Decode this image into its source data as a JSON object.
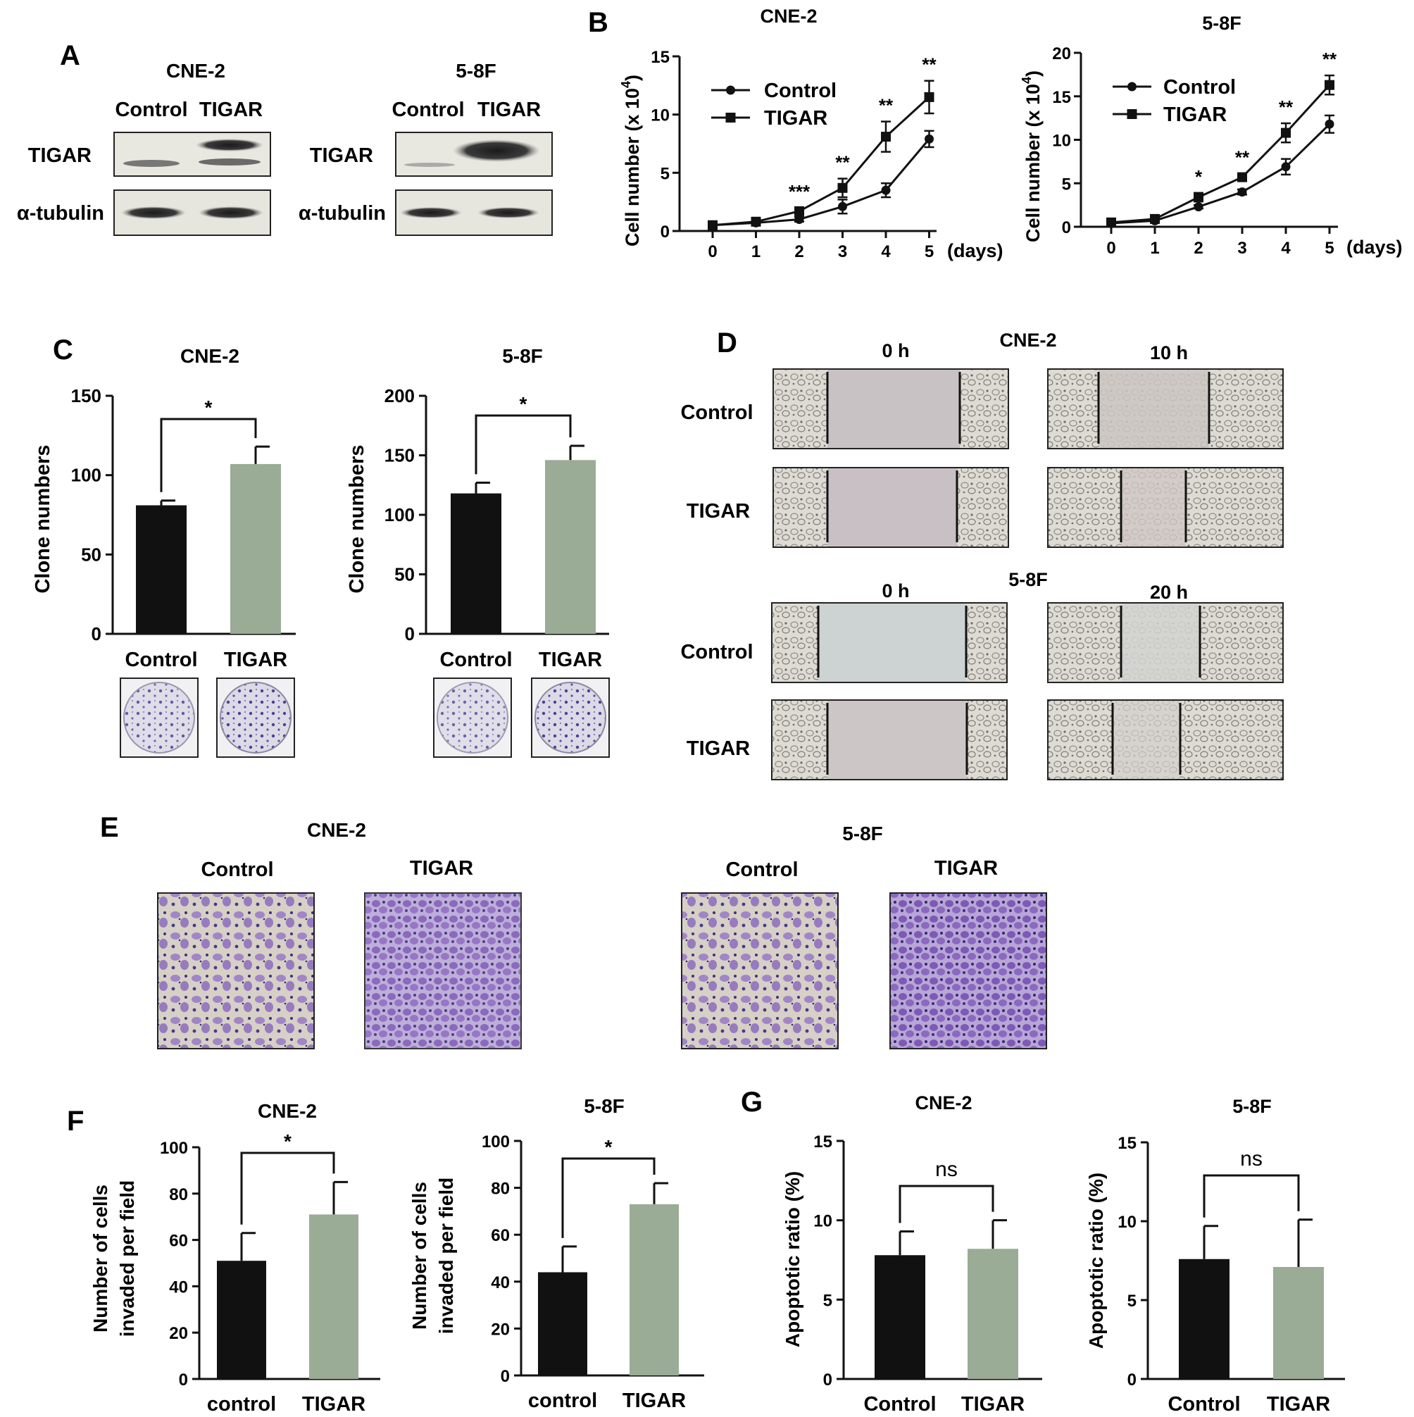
{
  "panel_letters": [
    "A",
    "B",
    "C",
    "D",
    "E",
    "F",
    "G"
  ],
  "panel_a": {
    "blots": [
      {
        "cell_line": "CNE-2",
        "lanes": [
          "Control",
          "TIGAR"
        ],
        "rows": [
          "TIGAR",
          "α-tubulin"
        ]
      },
      {
        "cell_line": "5-8F",
        "lanes": [
          "Control",
          "TIGAR"
        ],
        "rows": [
          "TIGAR",
          "α-tubulin"
        ]
      }
    ]
  },
  "panel_d": {
    "groups": [
      {
        "cell_line": "CNE-2",
        "timepoints": [
          "0 h",
          "10 h"
        ],
        "rows": [
          "Control",
          "TIGAR"
        ]
      },
      {
        "cell_line": "5-8F",
        "timepoints": [
          "0 h",
          "20 h"
        ],
        "rows": [
          "Control",
          "TIGAR"
        ]
      }
    ]
  },
  "panel_e": {
    "groups": [
      {
        "cell_line": "CNE-2",
        "columns": [
          "Control",
          "TIGAR"
        ]
      },
      {
        "cell_line": "5-8F",
        "columns": [
          "Control",
          "TIGAR"
        ]
      }
    ]
  },
  "colors": {
    "control": "#111111",
    "tigar": "#9aab96",
    "wound_bg": "#c9c3c3",
    "stain": "#7b55b5"
  },
  "chart_data": [
    {
      "id": "B-CNE2",
      "type": "line",
      "title": "CNE-2",
      "ylabel": "Cell number (x 10",
      "ylabel_sup": "4",
      "ylabel_close": ")",
      "x_unit": "(days)",
      "x": [
        0,
        1,
        2,
        3,
        4,
        5
      ],
      "xlim": [
        0,
        5
      ],
      "ylim": [
        0,
        15
      ],
      "yticks": [
        0,
        5,
        10,
        15
      ],
      "legend": "top-left",
      "series": [
        {
          "name": "Control",
          "marker": "circle",
          "values": [
            0.5,
            0.7,
            1.0,
            2.1,
            3.5,
            7.9
          ],
          "errors": [
            0.1,
            0.1,
            0.2,
            0.6,
            0.6,
            0.7
          ]
        },
        {
          "name": "TIGAR",
          "marker": "square",
          "values": [
            0.5,
            0.8,
            1.7,
            3.7,
            8.1,
            11.5
          ],
          "errors": [
            0.1,
            0.1,
            0.3,
            0.8,
            1.3,
            1.4
          ]
        }
      ],
      "annotations": [
        {
          "x": 2,
          "text": "***"
        },
        {
          "x": 3,
          "text": "**"
        },
        {
          "x": 4,
          "text": "**"
        },
        {
          "x": 5,
          "text": "**"
        }
      ]
    },
    {
      "id": "B-58F",
      "type": "line",
      "title": "5-8F",
      "ylabel": "Cell number (x 10",
      "ylabel_sup": "4",
      "ylabel_close": ")",
      "x_unit": "(days)",
      "x": [
        0,
        1,
        2,
        3,
        4,
        5
      ],
      "xlim": [
        0,
        5
      ],
      "ylim": [
        0,
        20
      ],
      "yticks": [
        0,
        5,
        10,
        15,
        20
      ],
      "legend": "top-left",
      "series": [
        {
          "name": "Control",
          "marker": "circle",
          "values": [
            0.4,
            0.7,
            2.3,
            4.0,
            6.9,
            11.8
          ],
          "errors": [
            0.1,
            0.1,
            0.2,
            0.3,
            0.9,
            1.0
          ]
        },
        {
          "name": "TIGAR",
          "marker": "square",
          "values": [
            0.5,
            0.9,
            3.4,
            5.7,
            10.8,
            16.3
          ],
          "errors": [
            0.1,
            0.1,
            0.5,
            0.4,
            1.1,
            1.1
          ]
        }
      ],
      "annotations": [
        {
          "x": 2,
          "text": "*"
        },
        {
          "x": 3,
          "text": "**"
        },
        {
          "x": 4,
          "text": "**"
        },
        {
          "x": 5,
          "text": "**"
        }
      ]
    },
    {
      "id": "C-CNE2",
      "type": "bar",
      "title": "CNE-2",
      "ylabel": "Clone numbers",
      "categories": [
        "Control",
        "TIGAR"
      ],
      "values": [
        81,
        107
      ],
      "errors": [
        3,
        11
      ],
      "ylim": [
        0,
        150
      ],
      "yticks": [
        0,
        50,
        100,
        150
      ],
      "significance": "*"
    },
    {
      "id": "C-58F",
      "type": "bar",
      "title": "5-8F",
      "ylabel": "Clone numbers",
      "categories": [
        "Control",
        "TIGAR"
      ],
      "values": [
        118,
        146
      ],
      "errors": [
        9,
        12
      ],
      "ylim": [
        0,
        200
      ],
      "yticks": [
        0,
        50,
        100,
        150,
        200
      ],
      "significance": "*"
    },
    {
      "id": "F-CNE2",
      "type": "bar",
      "title": "CNE-2",
      "ylabel": "Number of cells",
      "ylabel2": "invaded per field",
      "categories": [
        "control",
        "TIGAR"
      ],
      "values": [
        51,
        71
      ],
      "errors": [
        12,
        14
      ],
      "ylim": [
        0,
        100
      ],
      "yticks": [
        0,
        20,
        40,
        60,
        80,
        100
      ],
      "significance": "*"
    },
    {
      "id": "F-58F",
      "type": "bar",
      "title": "5-8F",
      "ylabel": "Number of cells",
      "ylabel2": "invaded per field",
      "categories": [
        "control",
        "TIGAR"
      ],
      "values": [
        44,
        73
      ],
      "errors": [
        11,
        9
      ],
      "ylim": [
        0,
        100
      ],
      "yticks": [
        0,
        20,
        40,
        60,
        80,
        100
      ],
      "significance": "*"
    },
    {
      "id": "G-CNE2",
      "type": "bar",
      "title": "CNE-2",
      "ylabel": "Apoptotic ratio (%)",
      "categories": [
        "Control",
        "TIGAR"
      ],
      "values": [
        7.8,
        8.2
      ],
      "errors": [
        1.5,
        1.8
      ],
      "ylim": [
        0,
        15
      ],
      "yticks": [
        0,
        5,
        10,
        15
      ],
      "significance": "ns"
    },
    {
      "id": "G-58F",
      "type": "bar",
      "title": "5-8F",
      "ylabel": "Apoptotic ratio (%)",
      "categories": [
        "Control",
        "TIGAR"
      ],
      "values": [
        7.6,
        7.1
      ],
      "errors": [
        2.1,
        3.0
      ],
      "ylim": [
        0,
        15
      ],
      "yticks": [
        0,
        5,
        10,
        15
      ],
      "significance": "ns"
    }
  ]
}
